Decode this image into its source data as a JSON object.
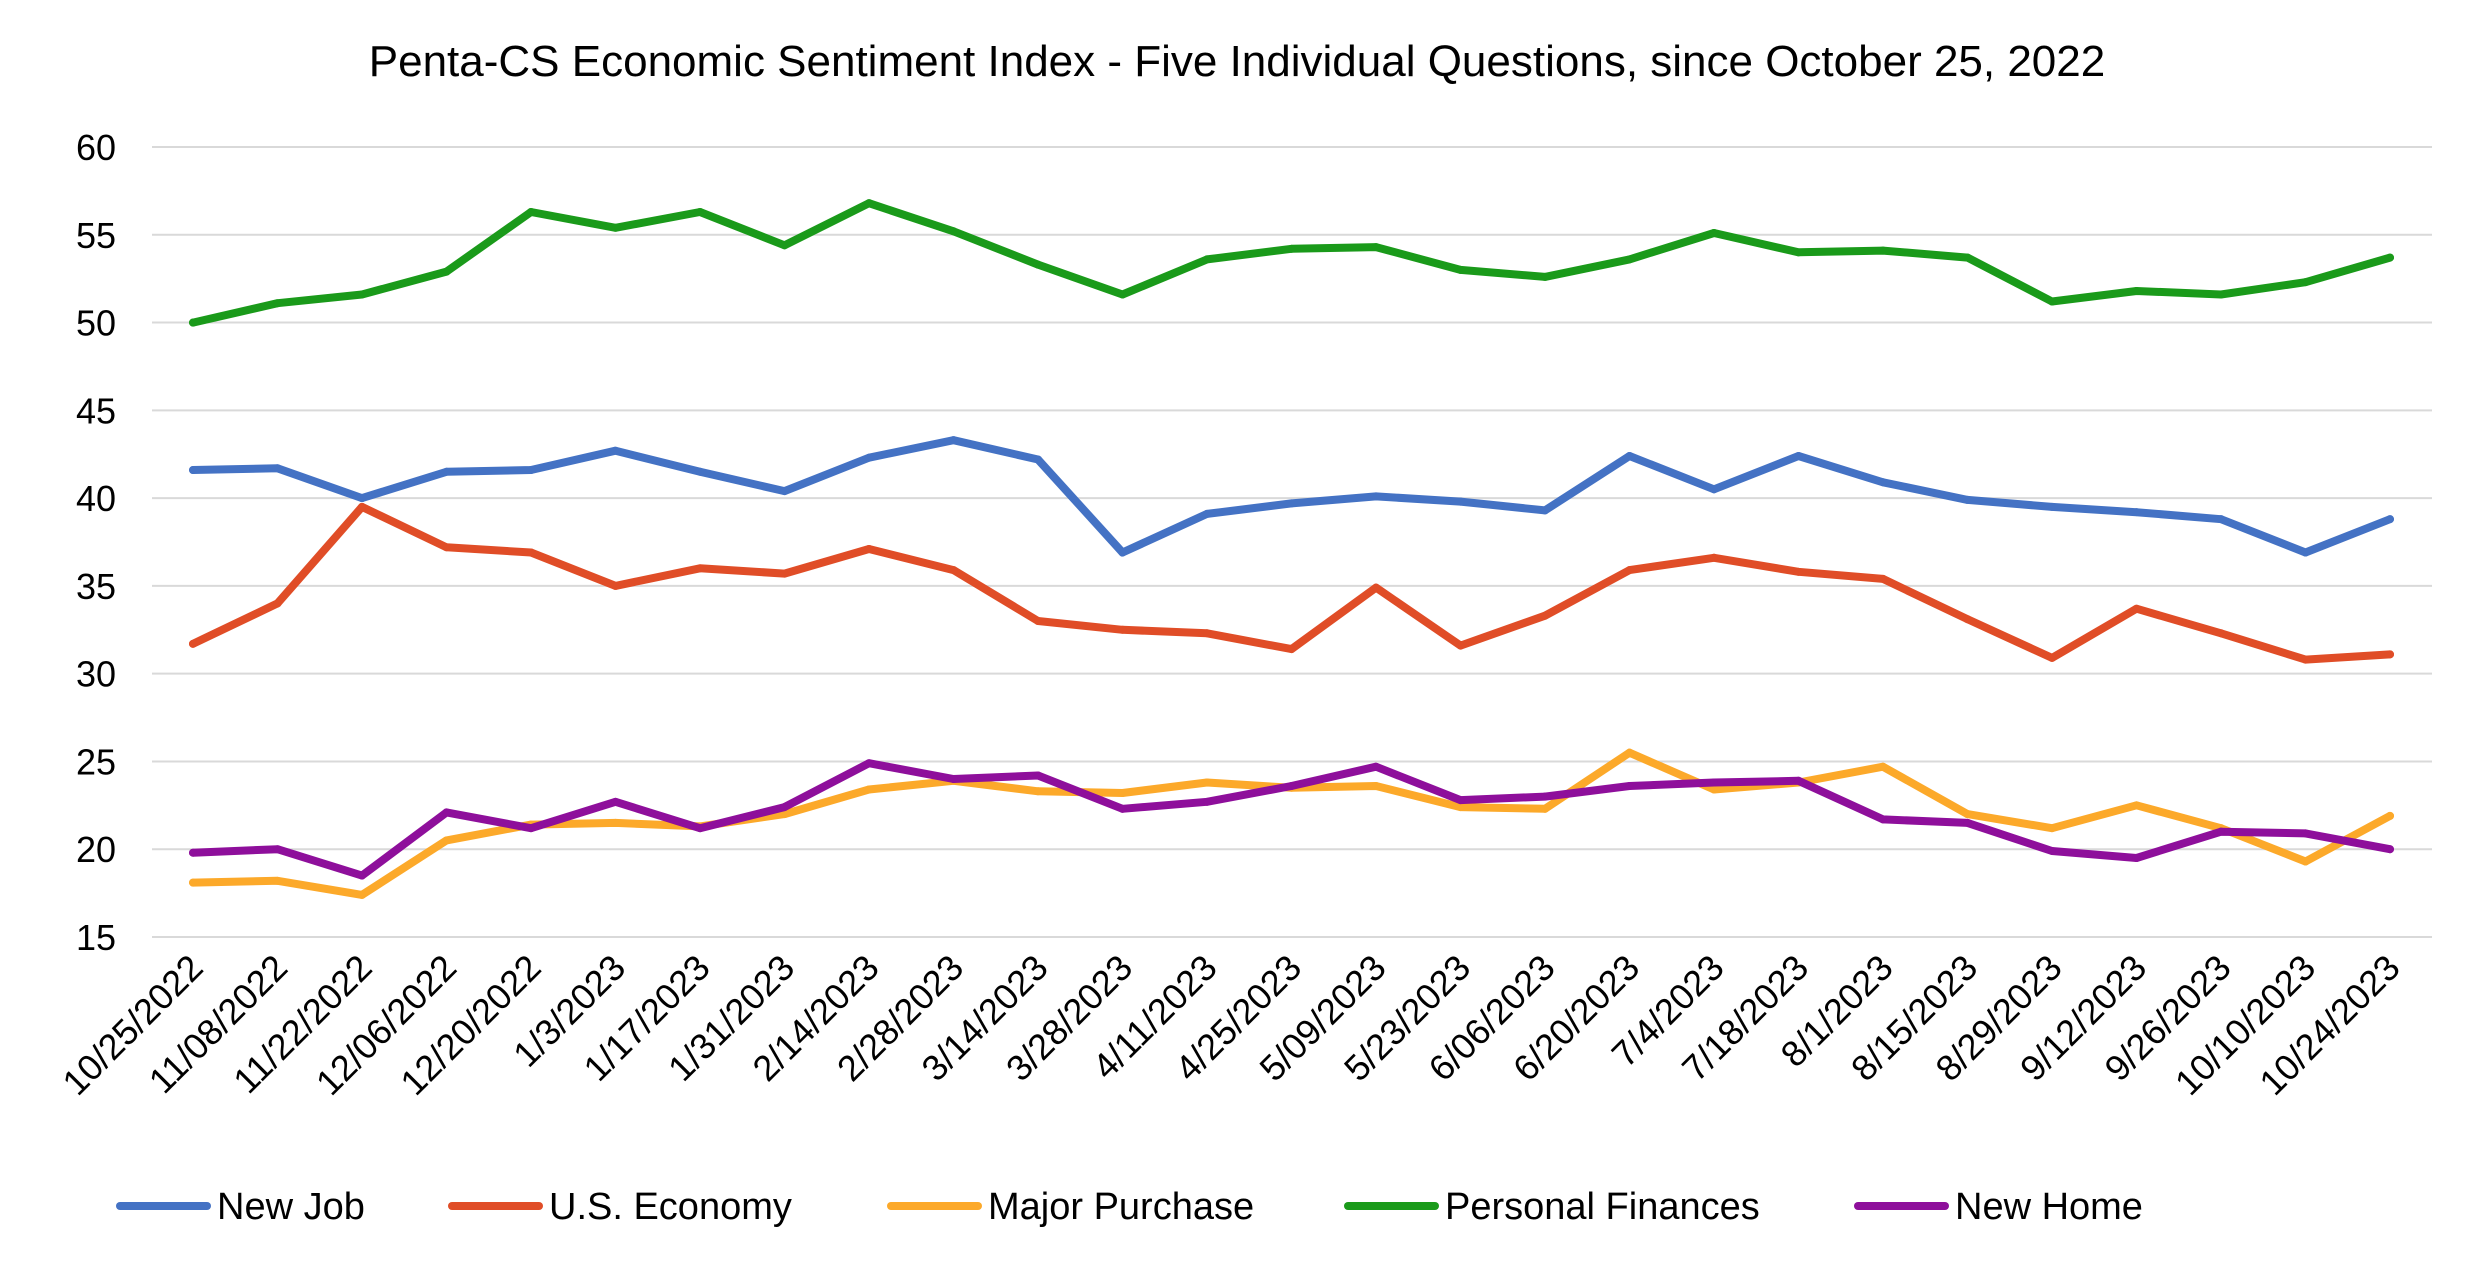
{
  "chart_data": {
    "type": "line",
    "title": "Penta-CS Economic Sentiment Index - Five Individual Questions, since October 25, 2022",
    "xlabel": "",
    "ylabel": "",
    "ylim": [
      15,
      60
    ],
    "yticks": [
      15,
      20,
      25,
      30,
      35,
      40,
      45,
      50,
      55,
      60
    ],
    "grid": true,
    "legend_position": "bottom",
    "categories": [
      "10/25/2022",
      "11/08/2022",
      "11/22/2022",
      "12/06/2022",
      "12/20/2022",
      "1/3/2023",
      "1/17/2023",
      "1/31/2023",
      "2/14/2023",
      "2/28/2023",
      "3/14/2023",
      "3/28/2023",
      "4/11/2023",
      "4/25/2023",
      "5/09/2023",
      "5/23/2023",
      "6/06/2023",
      "6/20/2023",
      "7/4/2023",
      "7/18/2023",
      "8/1/2023",
      "8/15/2023",
      "8/29/2023",
      "9/12/2023",
      "9/26/2023",
      "10/10/2023",
      "10/24/2023"
    ],
    "series": [
      {
        "name": "New Job",
        "color": "#4472c4",
        "values": [
          41.6,
          41.7,
          40.0,
          41.5,
          41.6,
          42.7,
          41.5,
          40.4,
          42.3,
          43.3,
          42.2,
          36.9,
          39.1,
          39.7,
          40.1,
          39.8,
          39.3,
          42.4,
          40.5,
          42.4,
          40.9,
          39.9,
          39.5,
          39.2,
          38.8,
          36.9,
          38.8
        ]
      },
      {
        "name": "U.S. Economy",
        "color": "#e04d27",
        "values": [
          31.7,
          34.0,
          39.5,
          37.2,
          36.9,
          35.0,
          36.0,
          35.7,
          37.1,
          35.9,
          33.0,
          32.5,
          32.3,
          31.4,
          34.9,
          31.6,
          33.3,
          35.9,
          36.6,
          35.8,
          35.4,
          33.1,
          30.9,
          33.7,
          32.3,
          30.8,
          31.1
        ]
      },
      {
        "name": "Major Purchase",
        "color": "#fca92a",
        "values": [
          18.1,
          18.2,
          17.4,
          20.5,
          21.4,
          21.5,
          21.3,
          22.0,
          23.4,
          23.9,
          23.3,
          23.2,
          23.8,
          23.5,
          23.6,
          22.4,
          22.3,
          25.5,
          23.4,
          23.8,
          24.7,
          22.0,
          21.2,
          22.5,
          21.2,
          19.3,
          21.9
        ]
      },
      {
        "name": "Personal Finances",
        "color": "#1a9a1a",
        "values": [
          50.0,
          51.1,
          51.6,
          52.9,
          56.3,
          55.4,
          56.3,
          54.4,
          56.8,
          55.2,
          53.3,
          51.6,
          53.6,
          54.2,
          54.3,
          53.0,
          52.6,
          53.6,
          55.1,
          54.0,
          54.1,
          53.7,
          51.2,
          51.8,
          51.6,
          52.3,
          53.7
        ]
      },
      {
        "name": "New Home",
        "color": "#8e0f9b",
        "values": [
          19.8,
          20.0,
          18.5,
          22.1,
          21.2,
          22.7,
          21.2,
          22.4,
          24.9,
          24.0,
          24.2,
          22.3,
          22.7,
          23.6,
          24.7,
          22.8,
          23.0,
          23.6,
          23.8,
          23.9,
          21.7,
          21.5,
          19.9,
          19.5,
          21.0,
          20.9,
          20.0
        ]
      }
    ]
  }
}
